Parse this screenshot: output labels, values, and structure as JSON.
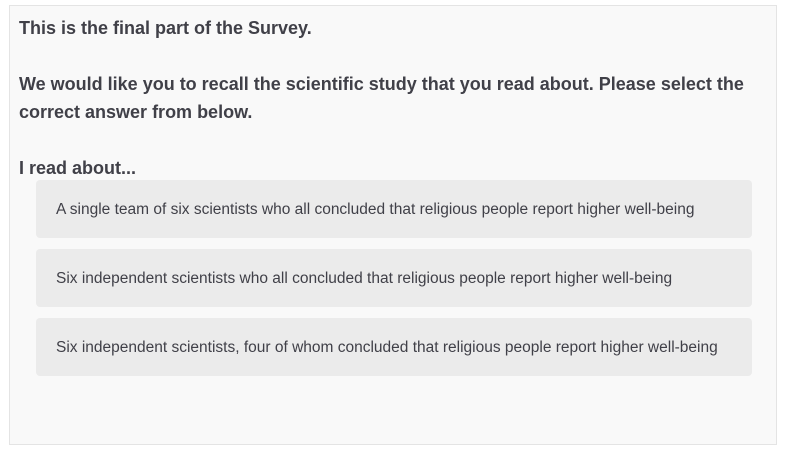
{
  "survey": {
    "intro": "This is the final part of the Survey.",
    "instruction": "We would like you to recall the scientific study that you read about. Please select the correct answer from below.",
    "prompt": "I read about...",
    "choices": [
      "A single team of six scientists who all concluded that religious people report higher well-being",
      "Six independent scientists who all concluded that religious people report higher well-being",
      "Six independent scientists, four of whom concluded that religious people report higher well-being"
    ]
  },
  "colors": {
    "text": "#404048",
    "panel_bg": "#f9f9f9",
    "choice_bg": "#ebebeb"
  }
}
